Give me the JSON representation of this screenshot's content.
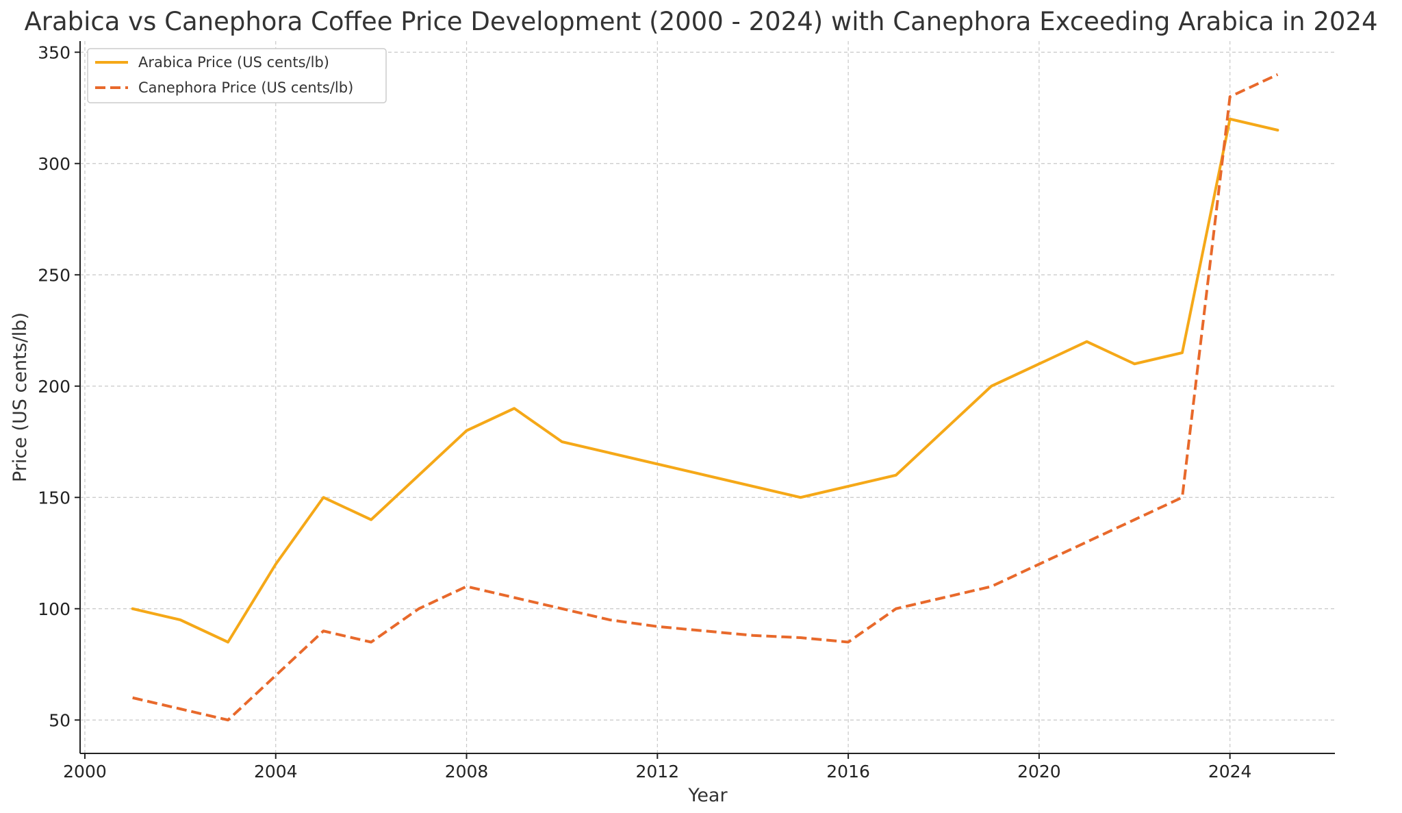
{
  "chart_data": {
    "type": "line",
    "title": "Arabica vs Canephora Coffee Price Development (2000 - 2024) with Canephora Exceeding Arabica in 2024",
    "xlabel": "Year",
    "ylabel": "Price (US cents/lb)",
    "xlim": [
      1999.9,
      2026.2
    ],
    "ylim": [
      35,
      355
    ],
    "xticks": [
      2000,
      2004,
      2008,
      2012,
      2016,
      2020,
      2024
    ],
    "yticks": [
      50,
      100,
      150,
      200,
      250,
      300,
      350
    ],
    "grid": true,
    "legend_position": "upper-left",
    "series": [
      {
        "name": "Arabica Price (US cents/lb)",
        "color": "#F5A818",
        "line_style": "solid",
        "x": [
          2001,
          2002,
          2003,
          2004,
          2005,
          2006,
          2007,
          2008,
          2009,
          2010,
          2011,
          2012,
          2013,
          2014,
          2015,
          2016,
          2017,
          2018,
          2019,
          2020,
          2021,
          2022,
          2023,
          2024,
          2025
        ],
        "values": [
          100,
          95,
          85,
          120,
          150,
          140,
          160,
          180,
          190,
          175,
          170,
          165,
          160,
          155,
          150,
          155,
          160,
          180,
          200,
          210,
          220,
          210,
          215,
          320,
          315
        ]
      },
      {
        "name": "Canephora Price (US cents/lb)",
        "color": "#E8692B",
        "line_style": "dashed",
        "x": [
          2001,
          2002,
          2003,
          2004,
          2005,
          2006,
          2007,
          2008,
          2009,
          2010,
          2011,
          2012,
          2013,
          2014,
          2015,
          2016,
          2017,
          2018,
          2019,
          2020,
          2021,
          2022,
          2023,
          2024,
          2025
        ],
        "values": [
          60,
          55,
          50,
          70,
          90,
          85,
          100,
          110,
          105,
          100,
          95,
          92,
          90,
          88,
          87,
          85,
          100,
          105,
          110,
          120,
          130,
          140,
          150,
          330,
          340
        ]
      }
    ]
  }
}
